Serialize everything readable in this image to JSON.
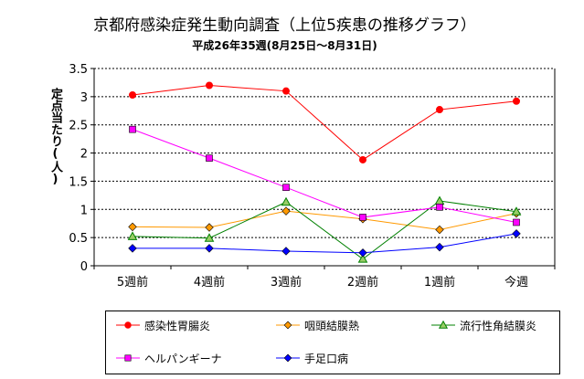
{
  "chart_data": {
    "type": "line",
    "title": "京都府感染症発生動向調査（上位5疾患の推移グラフ）",
    "subtitle": "平成26年35週(8月25日～8月31日)",
    "ylabel": "定点当たり(人)",
    "xlabel": "",
    "ylim": [
      0,
      3.5
    ],
    "yticks": [
      "0",
      "0.5",
      "1",
      "1.5",
      "2",
      "2.5",
      "3",
      "3.5"
    ],
    "categories": [
      "5週前",
      "4週前",
      "3週前",
      "2週前",
      "1週前",
      "今週"
    ],
    "grid": "horizontal",
    "legend_position": "bottom",
    "series": [
      {
        "name": "感染性胃腸炎",
        "color": "#ff0000",
        "marker": "circle",
        "values": [
          3.03,
          3.2,
          3.1,
          1.88,
          2.77,
          2.92
        ]
      },
      {
        "name": "咽頭結膜熱",
        "color": "#ff9900",
        "marker": "diamond",
        "values": [
          0.69,
          0.68,
          0.97,
          0.83,
          0.64,
          0.93
        ]
      },
      {
        "name": "流行性角結膜炎",
        "color": "#008000",
        "marker": "triangle",
        "values": [
          0.52,
          0.49,
          1.13,
          0.12,
          1.15,
          0.96
        ]
      },
      {
        "name": "ヘルパンギーナ",
        "color": "#ff00ff",
        "marker": "square",
        "values": [
          2.42,
          1.91,
          1.39,
          0.86,
          1.04,
          0.77
        ]
      },
      {
        "name": "手足口病",
        "color": "#0000ff",
        "marker": "diamond",
        "values": [
          0.31,
          0.31,
          0.26,
          0.23,
          0.33,
          0.57
        ]
      }
    ]
  }
}
